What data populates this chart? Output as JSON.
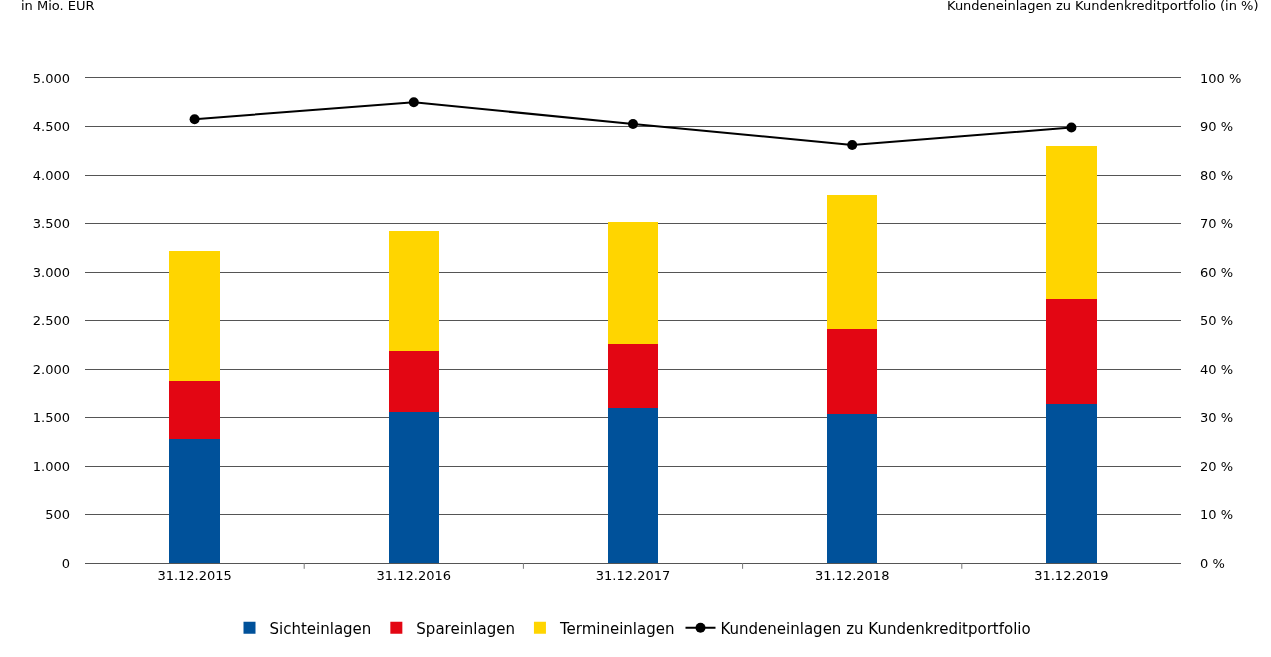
{
  "chart_data": {
    "type": "bar",
    "stacked": true,
    "ylabel": "in Mio. EUR",
    "y2label": "Kundeneinlagen zu Kundenkreditportfolio (in %)",
    "categories": [
      "31.12.2015",
      "31.12.2016",
      "31.12.2017",
      "31.12.2018",
      "31.12.2019"
    ],
    "series": [
      {
        "name": "Sichteinlagen",
        "color": "#00519a",
        "values": [
          1280,
          1560,
          1600,
          1540,
          1640
        ]
      },
      {
        "name": "Spareinlagen",
        "color": "#e30613",
        "values": [
          600,
          630,
          660,
          870,
          1080
        ]
      },
      {
        "name": "Termineinlagen",
        "color": "#ffd500",
        "values": [
          1340,
          1230,
          1260,
          1380,
          1580
        ]
      },
      {
        "name": "Kundeneinlagen zu Kundenkreditportfolio",
        "type": "line",
        "axis": "y2",
        "color": "#000000",
        "marker": "circle",
        "line_style": "solid",
        "values": [
          91.5,
          95,
          90.5,
          86.2,
          89.8
        ]
      }
    ],
    "ylim": [
      0,
      5000
    ],
    "yticks": [
      {
        "value": 0,
        "label": "0"
      },
      {
        "value": 500,
        "label": "500"
      },
      {
        "value": 1000,
        "label": "1.000"
      },
      {
        "value": 1500,
        "label": "1.500"
      },
      {
        "value": 2000,
        "label": "2.000"
      },
      {
        "value": 2500,
        "label": "2.500"
      },
      {
        "value": 3000,
        "label": "3.000"
      },
      {
        "value": 3500,
        "label": "3.500"
      },
      {
        "value": 4000,
        "label": "4.000"
      },
      {
        "value": 4500,
        "label": "4.500"
      },
      {
        "value": 5000,
        "label": "5.000"
      }
    ],
    "y2lim": [
      0,
      100
    ],
    "y2ticks": [
      {
        "value": 0,
        "label": "0 %"
      },
      {
        "value": 10,
        "label": "10 %"
      },
      {
        "value": 20,
        "label": "20 %"
      },
      {
        "value": 30,
        "label": "30 %"
      },
      {
        "value": 40,
        "label": "40 %"
      },
      {
        "value": 50,
        "label": "50 %"
      },
      {
        "value": 60,
        "label": "60 %"
      },
      {
        "value": 70,
        "label": "70 %"
      },
      {
        "value": 80,
        "label": "80 %"
      },
      {
        "value": 90,
        "label": "90 %"
      },
      {
        "value": 100,
        "label": "100 %"
      }
    ],
    "grid": "y",
    "legend": "bottom"
  }
}
